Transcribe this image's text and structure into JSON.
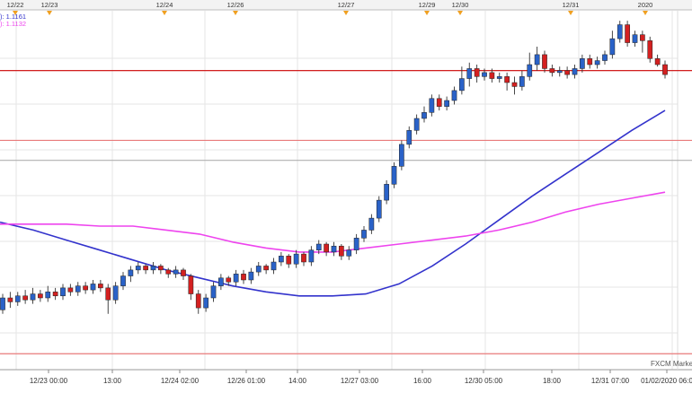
{
  "top_markers": [
    "12/22",
    "12/23",
    "12/24",
    "12/26",
    "12/27",
    "12/29",
    "12/30",
    "12/31",
    "2020"
  ],
  "legend": [
    {
      "label": "): 1.1161",
      "color": "#3333cc"
    },
    {
      "label": "): 1.1132",
      "color": "#ee44ee"
    }
  ],
  "watermark": "FXCM Market",
  "chart_data": {
    "type": "candlestick",
    "x_ticks": [
      "12/23 00:00",
      "13:00",
      "12/24 02:00",
      "12/26 01:00",
      "14:00",
      "12/27 03:00",
      "16:00",
      "12/30 05:00",
      "18:00",
      "12/31 07:00",
      "01/02/2020 06:0"
    ],
    "grid": true,
    "horizontal_lines": [
      {
        "value": 0.7,
        "color": "#cc0000"
      },
      {
        "value": 0.35,
        "color": "#e87a7a"
      },
      {
        "value": 0.25,
        "color": "#b0b0b0"
      },
      {
        "value": -0.72,
        "color": "#e87a7a"
      }
    ],
    "series": [
      {
        "kind": "moving-average",
        "color": "#3333cc",
        "values": [
          -0.06,
          -0.1,
          -0.15,
          -0.2,
          -0.25,
          -0.3,
          -0.34,
          -0.38,
          -0.41,
          -0.43,
          -0.43,
          -0.42,
          -0.37,
          -0.28,
          -0.17,
          -0.05,
          0.07,
          0.18,
          0.29,
          0.4,
          0.5
        ]
      },
      {
        "kind": "moving-average",
        "color": "#ee44ee",
        "values": [
          -0.07,
          -0.07,
          -0.07,
          -0.08,
          -0.08,
          -0.1,
          -0.12,
          -0.16,
          -0.19,
          -0.21,
          -0.21,
          -0.19,
          -0.17,
          -0.15,
          -0.13,
          -0.1,
          -0.06,
          -0.01,
          0.03,
          0.06,
          0.09
        ]
      }
    ],
    "candles": [
      [
        -0.5,
        -0.44,
        -0.52,
        -0.42
      ],
      [
        -0.44,
        -0.46,
        -0.49,
        -0.41
      ],
      [
        -0.46,
        -0.43,
        -0.48,
        -0.41
      ],
      [
        -0.43,
        -0.45,
        -0.47,
        -0.4
      ],
      [
        -0.45,
        -0.42,
        -0.47,
        -0.39
      ],
      [
        -0.42,
        -0.44,
        -0.46,
        -0.4
      ],
      [
        -0.44,
        -0.41,
        -0.46,
        -0.38
      ],
      [
        -0.41,
        -0.43,
        -0.45,
        -0.39
      ],
      [
        -0.43,
        -0.39,
        -0.45,
        -0.37
      ],
      [
        -0.39,
        -0.41,
        -0.43,
        -0.37
      ],
      [
        -0.41,
        -0.38,
        -0.43,
        -0.36
      ],
      [
        -0.38,
        -0.4,
        -0.42,
        -0.36
      ],
      [
        -0.4,
        -0.37,
        -0.42,
        -0.35
      ],
      [
        -0.37,
        -0.39,
        -0.41,
        -0.35
      ],
      [
        -0.39,
        -0.45,
        -0.52,
        -0.37
      ],
      [
        -0.45,
        -0.38,
        -0.47,
        -0.36
      ],
      [
        -0.38,
        -0.33,
        -0.4,
        -0.31
      ],
      [
        -0.33,
        -0.3,
        -0.36,
        -0.28
      ],
      [
        -0.3,
        -0.28,
        -0.32,
        -0.26
      ],
      [
        -0.28,
        -0.3,
        -0.32,
        -0.27
      ],
      [
        -0.3,
        -0.28,
        -0.32,
        -0.26
      ],
      [
        -0.28,
        -0.3,
        -0.32,
        -0.27
      ],
      [
        -0.3,
        -0.32,
        -0.34,
        -0.29
      ],
      [
        -0.32,
        -0.3,
        -0.34,
        -0.28
      ],
      [
        -0.3,
        -0.33,
        -0.35,
        -0.29
      ],
      [
        -0.33,
        -0.42,
        -0.45,
        -0.32
      ],
      [
        -0.42,
        -0.49,
        -0.52,
        -0.4
      ],
      [
        -0.49,
        -0.44,
        -0.51,
        -0.42
      ],
      [
        -0.44,
        -0.38,
        -0.46,
        -0.36
      ],
      [
        -0.38,
        -0.34,
        -0.4,
        -0.32
      ],
      [
        -0.34,
        -0.36,
        -0.38,
        -0.33
      ],
      [
        -0.36,
        -0.32,
        -0.38,
        -0.3
      ],
      [
        -0.32,
        -0.35,
        -0.37,
        -0.3
      ],
      [
        -0.35,
        -0.31,
        -0.37,
        -0.29
      ],
      [
        -0.31,
        -0.28,
        -0.33,
        -0.26
      ],
      [
        -0.28,
        -0.3,
        -0.32,
        -0.27
      ],
      [
        -0.3,
        -0.26,
        -0.32,
        -0.24
      ],
      [
        -0.26,
        -0.23,
        -0.28,
        -0.21
      ],
      [
        -0.23,
        -0.27,
        -0.29,
        -0.22
      ],
      [
        -0.27,
        -0.22,
        -0.29,
        -0.2
      ],
      [
        -0.22,
        -0.26,
        -0.28,
        -0.21
      ],
      [
        -0.26,
        -0.2,
        -0.28,
        -0.18
      ],
      [
        -0.2,
        -0.17,
        -0.22,
        -0.15
      ],
      [
        -0.17,
        -0.21,
        -0.23,
        -0.16
      ],
      [
        -0.21,
        -0.18,
        -0.23,
        -0.16
      ],
      [
        -0.18,
        -0.23,
        -0.25,
        -0.17
      ],
      [
        -0.23,
        -0.2,
        -0.25,
        -0.18
      ],
      [
        -0.2,
        -0.14,
        -0.22,
        -0.12
      ],
      [
        -0.14,
        -0.1,
        -0.16,
        -0.08
      ],
      [
        -0.1,
        -0.04,
        -0.12,
        -0.02
      ],
      [
        -0.04,
        0.05,
        -0.06,
        0.07
      ],
      [
        0.05,
        0.13,
        0.03,
        0.15
      ],
      [
        0.13,
        0.22,
        0.11,
        0.24
      ],
      [
        0.22,
        0.33,
        0.2,
        0.35
      ],
      [
        0.33,
        0.4,
        0.31,
        0.42
      ],
      [
        0.4,
        0.46,
        0.38,
        0.48
      ],
      [
        0.46,
        0.49,
        0.44,
        0.52
      ],
      [
        0.49,
        0.56,
        0.47,
        0.58
      ],
      [
        0.56,
        0.52,
        0.5,
        0.58
      ],
      [
        0.52,
        0.55,
        0.5,
        0.57
      ],
      [
        0.55,
        0.6,
        0.53,
        0.62
      ],
      [
        0.6,
        0.66,
        0.58,
        0.72
      ],
      [
        0.66,
        0.71,
        0.62,
        0.74
      ],
      [
        0.71,
        0.67,
        0.64,
        0.73
      ],
      [
        0.67,
        0.69,
        0.65,
        0.71
      ],
      [
        0.69,
        0.66,
        0.64,
        0.71
      ],
      [
        0.66,
        0.67,
        0.64,
        0.69
      ],
      [
        0.67,
        0.64,
        0.6,
        0.69
      ],
      [
        0.64,
        0.62,
        0.58,
        0.67
      ],
      [
        0.62,
        0.67,
        0.6,
        0.7
      ],
      [
        0.67,
        0.73,
        0.65,
        0.79
      ],
      [
        0.73,
        0.78,
        0.7,
        0.82
      ],
      [
        0.78,
        0.71,
        0.69,
        0.8
      ],
      [
        0.71,
        0.69,
        0.67,
        0.73
      ],
      [
        0.69,
        0.7,
        0.67,
        0.72
      ],
      [
        0.7,
        0.68,
        0.66,
        0.72
      ],
      [
        0.68,
        0.71,
        0.66,
        0.73
      ],
      [
        0.71,
        0.76,
        0.69,
        0.78
      ],
      [
        0.76,
        0.73,
        0.71,
        0.78
      ],
      [
        0.73,
        0.75,
        0.71,
        0.77
      ],
      [
        0.75,
        0.78,
        0.73,
        0.8
      ],
      [
        0.78,
        0.86,
        0.76,
        0.9
      ],
      [
        0.86,
        0.93,
        0.84,
        0.95
      ],
      [
        0.93,
        0.84,
        0.82,
        0.95
      ],
      [
        0.84,
        0.88,
        0.82,
        0.9
      ],
      [
        0.88,
        0.85,
        0.79,
        0.9
      ],
      [
        0.85,
        0.76,
        0.74,
        0.87
      ],
      [
        0.76,
        0.73,
        0.72,
        0.78
      ],
      [
        0.73,
        0.68,
        0.66,
        0.75
      ]
    ]
  }
}
